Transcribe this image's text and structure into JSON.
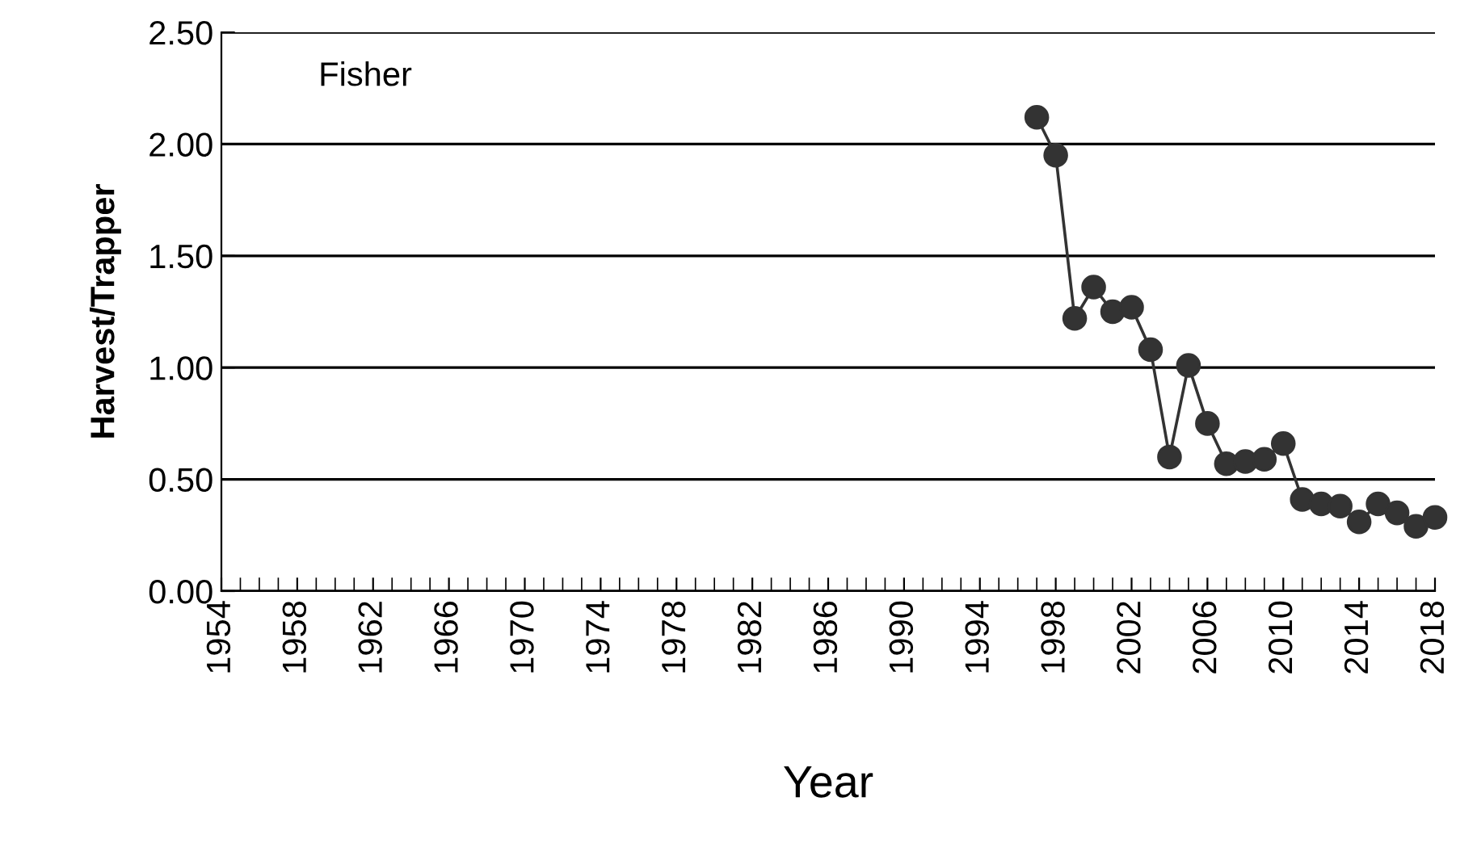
{
  "chart_data": {
    "type": "line",
    "xlabel": "Year",
    "ylabel": "Harvest/Trapper",
    "annotations": [
      "Fisher"
    ],
    "x": [
      1997,
      1998,
      1999,
      2000,
      2001,
      2002,
      2003,
      2004,
      2005,
      2006,
      2007,
      2008,
      2009,
      2010,
      2011,
      2012,
      2013,
      2014,
      2015,
      2016,
      2017,
      2018
    ],
    "series": [
      {
        "color": "#333333",
        "values": [
          2.12,
          1.95,
          1.22,
          1.36,
          1.25,
          1.27,
          1.08,
          0.6,
          1.01,
          0.75,
          0.57,
          0.58,
          0.59,
          0.66,
          0.41,
          0.39,
          0.38,
          0.31,
          0.39,
          0.35,
          0.29,
          0.33
        ]
      }
    ],
    "xlim": [
      1954,
      2018
    ],
    "xticks": [
      1954,
      1958,
      1962,
      1966,
      1970,
      1974,
      1978,
      1982,
      1986,
      1990,
      1994,
      1998,
      2002,
      2006,
      2010,
      2014,
      2018
    ],
    "ylim": [
      0,
      2.5
    ],
    "yticks": [
      {
        "value": 0,
        "label": "0.00"
      },
      {
        "value": 0.5,
        "label": "0.50"
      },
      {
        "value": 1.0,
        "label": "1.00"
      },
      {
        "value": 1.5,
        "label": "1.50"
      },
      {
        "value": 2.0,
        "label": "2.00"
      },
      {
        "value": 2.5,
        "label": "2.50"
      }
    ],
    "grid": "y",
    "marker": "circle",
    "line_style": "solid"
  }
}
